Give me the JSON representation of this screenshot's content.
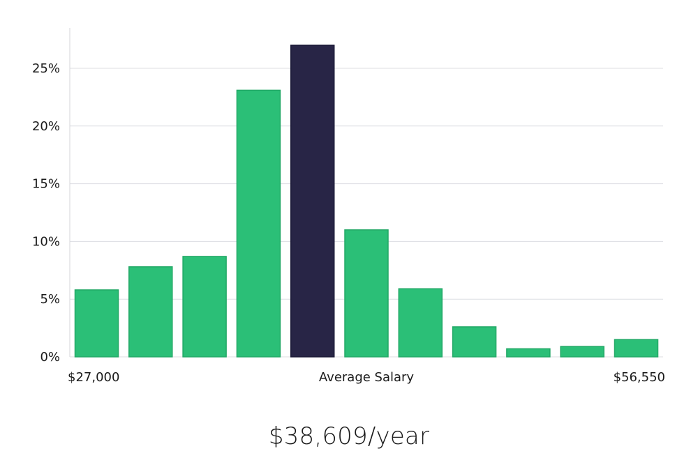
{
  "chart_data": {
    "type": "bar",
    "categories": [
      "",
      "",
      "",
      "",
      "",
      "",
      "",
      "",
      "",
      "",
      ""
    ],
    "values": [
      5.8,
      7.8,
      8.7,
      23.1,
      27.0,
      11.0,
      5.9,
      2.6,
      0.7,
      0.9,
      1.5
    ],
    "highlight_index": 4,
    "y_ticks": [
      "0%",
      "5%",
      "10%",
      "15%",
      "20%",
      "25%"
    ],
    "y_tick_values": [
      0,
      5,
      10,
      15,
      20,
      25
    ],
    "ylim": [
      0,
      28.5
    ],
    "grid": true,
    "x_labels": {
      "left": "$27,000",
      "center": "Average Salary",
      "right": "$56,550"
    },
    "colors": {
      "bar": "#2bbf77",
      "bar_border": "#22a866",
      "highlight": "#282546",
      "highlight_border": "#181634"
    }
  },
  "headline": "$38,609/year"
}
